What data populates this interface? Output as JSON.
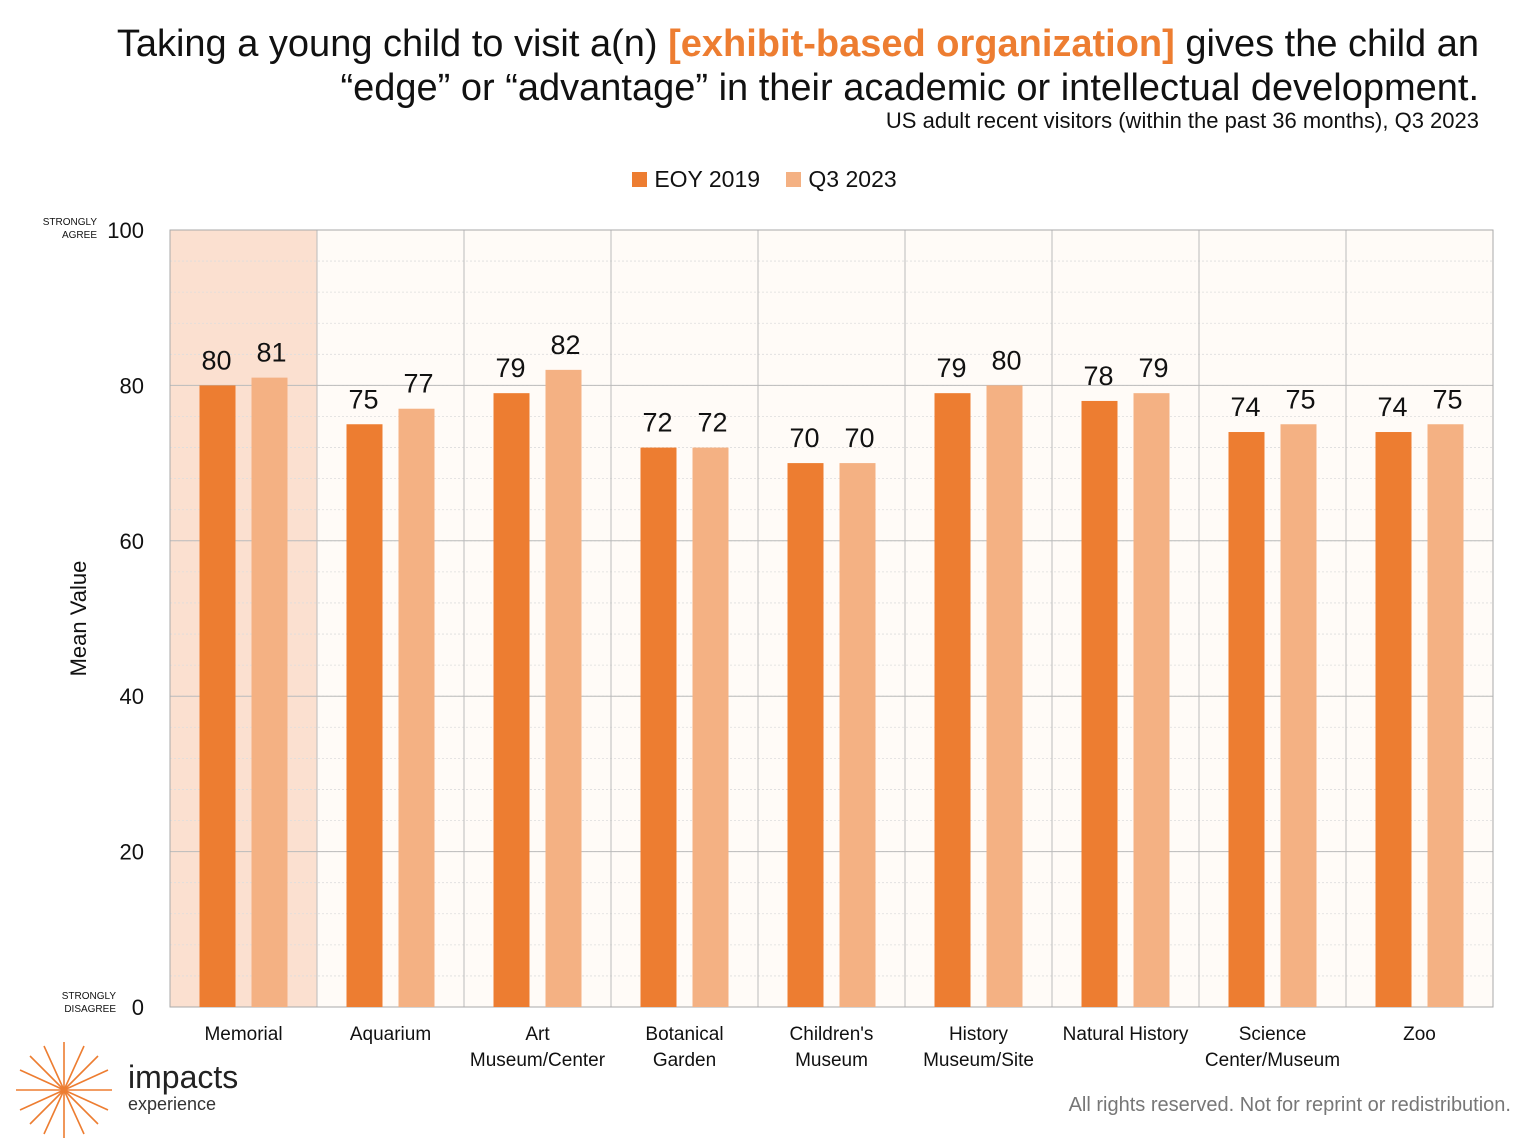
{
  "header": {
    "title_part1": "Taking a young child to visit a(n) ",
    "title_highlight": "[exhibit-based organization]",
    "title_part2": " gives the child an “edge” or “advantage” in their academic or intellectual development.",
    "subtitle": "US adult recent visitors (within the past 36 months), Q3 2023"
  },
  "colors": {
    "accent": "#ED7D31",
    "series_2019": "#ED7D31",
    "series_2023": "#F4B183",
    "highlight_band": "#FBE0D0"
  },
  "chart_data": {
    "type": "bar",
    "categories": [
      [
        "Memorial"
      ],
      [
        "Aquarium"
      ],
      [
        "Art",
        "Museum/Center"
      ],
      [
        "Botanical",
        "Garden"
      ],
      [
        "Children's",
        "Museum"
      ],
      [
        "History",
        "Museum/Site"
      ],
      [
        "Natural History"
      ],
      [
        "Science",
        "Center/Museum"
      ],
      [
        "Zoo"
      ]
    ],
    "series": [
      {
        "name": "EOY 2019",
        "values": [
          80,
          75,
          79,
          72,
          70,
          79,
          78,
          74,
          74
        ]
      },
      {
        "name": "Q3 2023",
        "values": [
          81,
          77,
          82,
          72,
          70,
          80,
          79,
          75,
          75
        ]
      }
    ],
    "ylabel": "Mean Value",
    "ylim": [
      0,
      100
    ],
    "yticks": [
      0,
      20,
      40,
      60,
      80,
      100
    ],
    "y_top_anchor": [
      "STRONGLY",
      "AGREE"
    ],
    "y_bottom_anchor": [
      "STRONGLY",
      "DISAGREE"
    ],
    "highlighted_category": "Memorial",
    "legend_position": "top-center",
    "grid": true
  },
  "watermark": {
    "name": "impacts",
    "sub": "experience"
  },
  "logo": {
    "name": "impacts",
    "sub": "experience"
  },
  "footer": {
    "text": "All rights reserved. Not for reprint or redistribution."
  }
}
